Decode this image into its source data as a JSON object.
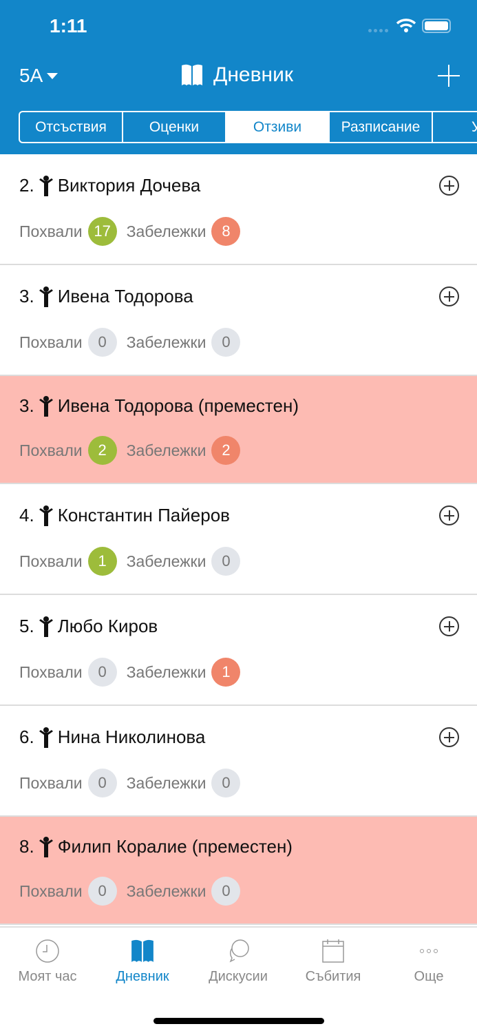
{
  "status": {
    "time": "1:11"
  },
  "header": {
    "class_selector": "5А",
    "title": "Дневник",
    "accent": "#1286c9"
  },
  "tabs": [
    {
      "label": "Отсъствия"
    },
    {
      "label": "Оценки"
    },
    {
      "label": "Отзиви",
      "active": true
    },
    {
      "label": "Разписание"
    },
    {
      "label": "Уче"
    }
  ],
  "labels": {
    "praise": "Похвали",
    "remarks": "Забележки"
  },
  "students": [
    {
      "name": "2. Виктория Дочева",
      "praise": "17",
      "remarks": "8",
      "moved": false
    },
    {
      "name": "3. Ивена Тодорова",
      "praise": "0",
      "remarks": "0",
      "moved": false
    },
    {
      "name": "3. Ивена Тодорова (преместен)",
      "praise": "2",
      "remarks": "2",
      "moved": true
    },
    {
      "name": "4. Константин Пайеров",
      "praise": "1",
      "remarks": "0",
      "moved": false
    },
    {
      "name": "5. Любо Киров",
      "praise": "0",
      "remarks": "1",
      "moved": false
    },
    {
      "name": "6. Нина Николинова",
      "praise": "0",
      "remarks": "0",
      "moved": false
    },
    {
      "name": "8. Филип Коралие (преместен)",
      "praise": "0",
      "remarks": "0",
      "moved": true
    }
  ],
  "colors": {
    "praise": "#9dbc3b",
    "remarks": "#f0856a",
    "zero": "#e2e5ea",
    "moved_bg": "#fdbbb3"
  },
  "tabbar": [
    {
      "label": "Моят час",
      "icon": "clock-icon"
    },
    {
      "label": "Дневник",
      "icon": "book-icon",
      "active": true
    },
    {
      "label": "Дискусии",
      "icon": "chat-icon"
    },
    {
      "label": "Събития",
      "icon": "calendar-icon"
    },
    {
      "label": "Още",
      "icon": "more-icon"
    }
  ]
}
